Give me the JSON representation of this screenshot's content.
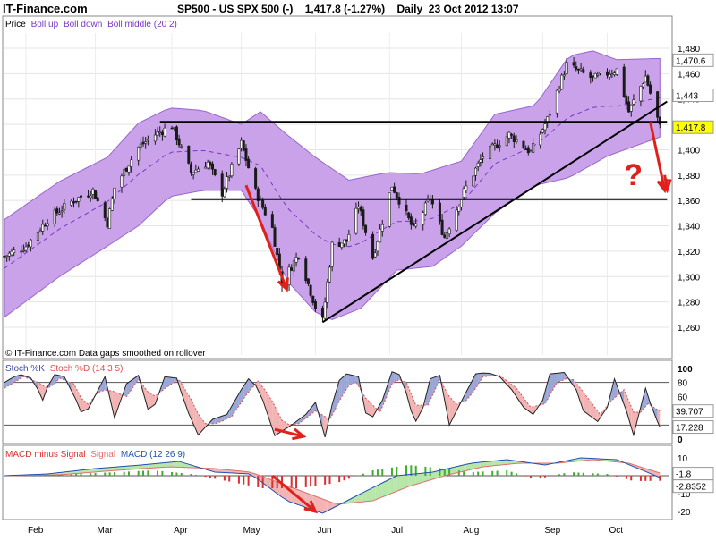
{
  "header": {
    "brand": "IT-Finance.com",
    "title": "SP500 - US SPX 500 (-)    1,417.8 (-1.27%)    Daily  23 Oct 2012 13:07"
  },
  "colors": {
    "band_fill": "#c9a2ea",
    "band_edge": "#9966cc",
    "middle_line": "#7a36c0",
    "candle": "#1a1a1a",
    "annotation_red": "#e0201a",
    "stoch_k": "#3b4aa8",
    "stoch_d": "#e05050",
    "macd_pos": "#3fae2a",
    "macd_neg": "#d93030",
    "macd_line": "#2050b0",
    "signal_line": "#e07070",
    "price_highlight": "#ffff00"
  },
  "chart_data": [
    {
      "type": "candlestick",
      "panel": "price",
      "title": "Price Boll up Boll down Boll middle (20 2)",
      "legend": {
        "prefix": "Price",
        "series": [
          {
            "name": "Boll up",
            "color": "#7a36c0"
          },
          {
            "name": "Boll down",
            "color": "#7a36c0"
          },
          {
            "name": "Boll middle (20 2)",
            "color": "#7a36c0"
          }
        ]
      },
      "footnote": "© IT-Finance.com Data gaps smoothed on rollover",
      "x_months": [
        "Feb",
        "Mar",
        "Apr",
        "May",
        "Jun",
        "Jul",
        "Aug",
        "Sep",
        "Oct"
      ],
      "ylim": [
        1248,
        1492
      ],
      "y_ticks": [
        1260,
        1280,
        1300,
        1320,
        1340,
        1360,
        1380,
        1400,
        1420,
        1440,
        1460,
        1480
      ],
      "y_tick_labels": [
        "1,260",
        "1,280",
        "1,300",
        "1,320",
        "1,340",
        "1,360",
        "1,380",
        "1,400",
        "1,420",
        "1,440",
        "1,460",
        "1,480"
      ],
      "close_key": [
        [
          "2012-01-23",
          1316
        ],
        [
          "2012-02-01",
          1324
        ],
        [
          "2012-02-10",
          1345
        ],
        [
          "2012-02-20",
          1359
        ],
        [
          "2012-02-29",
          1368
        ],
        [
          "2012-03-06",
          1342
        ],
        [
          "2012-03-09",
          1370
        ],
        [
          "2012-03-19",
          1402
        ],
        [
          "2012-03-26",
          1412
        ],
        [
          "2012-04-02",
          1419
        ],
        [
          "2012-04-10",
          1382
        ],
        [
          "2012-04-17",
          1390
        ],
        [
          "2012-04-23",
          1366
        ],
        [
          "2012-05-01",
          1405
        ],
        [
          "2012-05-07",
          1367
        ],
        [
          "2012-05-14",
          1338
        ],
        [
          "2012-05-18",
          1295
        ],
        [
          "2012-05-25",
          1318
        ],
        [
          "2012-06-01",
          1276
        ],
        [
          "2012-06-04",
          1265
        ],
        [
          "2012-06-08",
          1325
        ],
        [
          "2012-06-14",
          1328
        ],
        [
          "2012-06-19",
          1356
        ],
        [
          "2012-06-25",
          1315
        ],
        [
          "2012-07-03",
          1372
        ],
        [
          "2012-07-12",
          1337
        ],
        [
          "2012-07-19",
          1362
        ],
        [
          "2012-07-25",
          1331
        ],
        [
          "2012-08-02",
          1367
        ],
        [
          "2012-08-10",
          1395
        ],
        [
          "2012-08-21",
          1412
        ],
        [
          "2012-08-30",
          1398
        ],
        [
          "2012-09-06",
          1424
        ],
        [
          "2012-09-14",
          1467
        ],
        [
          "2012-09-25",
          1456
        ],
        [
          "2012-10-05",
          1463
        ],
        [
          "2012-10-10",
          1430
        ],
        [
          "2012-10-17",
          1458
        ],
        [
          "2012-10-23",
          1417.8
        ]
      ],
      "upper_band_key": [
        [
          "2012-01-23",
          1345
        ],
        [
          "2012-02-15",
          1375
        ],
        [
          "2012-03-06",
          1394
        ],
        [
          "2012-03-19",
          1421
        ],
        [
          "2012-04-01",
          1433
        ],
        [
          "2012-04-15",
          1431
        ],
        [
          "2012-05-01",
          1420
        ],
        [
          "2012-05-09",
          1430
        ],
        [
          "2012-05-20",
          1412
        ],
        [
          "2012-06-01",
          1394
        ],
        [
          "2012-06-15",
          1376
        ],
        [
          "2012-07-01",
          1382
        ],
        [
          "2012-07-15",
          1381
        ],
        [
          "2012-08-01",
          1391
        ],
        [
          "2012-08-15",
          1428
        ],
        [
          "2012-09-01",
          1435
        ],
        [
          "2012-09-15",
          1474
        ],
        [
          "2012-09-25",
          1478
        ],
        [
          "2012-10-05",
          1471
        ],
        [
          "2012-10-23",
          1472
        ]
      ],
      "lower_band_key": [
        [
          "2012-01-23",
          1268
        ],
        [
          "2012-02-15",
          1300
        ],
        [
          "2012-03-06",
          1324
        ],
        [
          "2012-03-19",
          1340
        ],
        [
          "2012-04-01",
          1363
        ],
        [
          "2012-04-15",
          1368
        ],
        [
          "2012-05-01",
          1368
        ],
        [
          "2012-05-09",
          1345
        ],
        [
          "2012-05-20",
          1297
        ],
        [
          "2012-06-01",
          1272
        ],
        [
          "2012-06-08",
          1266
        ],
        [
          "2012-06-20",
          1275
        ],
        [
          "2012-07-05",
          1305
        ],
        [
          "2012-07-20",
          1308
        ],
        [
          "2012-08-01",
          1324
        ],
        [
          "2012-08-15",
          1350
        ],
        [
          "2012-09-01",
          1372
        ],
        [
          "2012-09-15",
          1378
        ],
        [
          "2012-10-01",
          1395
        ],
        [
          "2012-10-23",
          1410
        ]
      ],
      "last_values": [
        {
          "label": "1,470.6",
          "value": 1470.6,
          "highlight": false
        },
        {
          "label": "1,443",
          "value": 1443,
          "highlight": false
        },
        {
          "label": "1,417.8",
          "value": 1417.8,
          "highlight": true
        }
      ],
      "annotations": {
        "horizontal_lines": [
          {
            "y": 1422,
            "from": "2012-03-28",
            "to": "2012-10-26"
          },
          {
            "y": 1361,
            "from": "2012-04-10",
            "to": "2012-10-26"
          }
        ],
        "trend_line": {
          "from": [
            "2012-06-04",
            1264
          ],
          "to": [
            "2012-10-26",
            1438
          ]
        },
        "arrows": [
          {
            "from": [
              "2012-05-03",
              1372
            ],
            "to": [
              "2012-05-20",
              1290
            ]
          },
          {
            "from": [
              "2012-10-19",
              1422
            ],
            "to": [
              "2012-10-25",
              1368
            ]
          },
          {
            "from": [
              "2012-10-25",
              1380
            ],
            "to": [
              "2012-10-26",
              1368
            ]
          }
        ],
        "question_mark": {
          "text": "?",
          "at": [
            "2012-10-08",
            1372
          ]
        }
      }
    },
    {
      "type": "line",
      "panel": "stochastic",
      "title": "Stoch %K Stoch %D (14 3 5)",
      "legend": {
        "series": [
          {
            "name": "Stoch %K",
            "color": "#3b4aa8"
          },
          {
            "name": "Stoch %D (14 3 5)",
            "color": "#e05050"
          }
        ]
      },
      "ylim": [
        -6,
        106
      ],
      "y_ticks": [
        0,
        20,
        40,
        60,
        80,
        100
      ],
      "guide_lines": [
        20,
        80
      ],
      "k_key": [
        [
          "2012-01-23",
          80
        ],
        [
          "2012-01-29",
          92
        ],
        [
          "2012-02-04",
          85
        ],
        [
          "2012-02-08",
          55
        ],
        [
          "2012-02-12",
          92
        ],
        [
          "2012-02-17",
          88
        ],
        [
          "2012-02-22",
          55
        ],
        [
          "2012-02-25",
          30
        ],
        [
          "2012-03-01",
          62
        ],
        [
          "2012-03-05",
          88
        ],
        [
          "2012-03-09",
          30
        ],
        [
          "2012-03-14",
          78
        ],
        [
          "2012-03-19",
          90
        ],
        [
          "2012-03-24",
          30
        ],
        [
          "2012-03-30",
          88
        ],
        [
          "2012-04-04",
          86
        ],
        [
          "2012-04-08",
          44
        ],
        [
          "2012-04-13",
          6
        ],
        [
          "2012-04-19",
          28
        ],
        [
          "2012-04-25",
          35
        ],
        [
          "2012-05-01",
          70
        ],
        [
          "2012-05-05",
          90
        ],
        [
          "2012-05-10",
          55
        ],
        [
          "2012-05-15",
          5
        ],
        [
          "2012-05-22",
          20
        ],
        [
          "2012-05-28",
          35
        ],
        [
          "2012-06-01",
          52
        ],
        [
          "2012-06-05",
          3
        ],
        [
          "2012-06-10",
          80
        ],
        [
          "2012-06-14",
          92
        ],
        [
          "2012-06-19",
          88
        ],
        [
          "2012-06-23",
          20
        ],
        [
          "2012-06-29",
          55
        ],
        [
          "2012-07-03",
          95
        ],
        [
          "2012-07-07",
          90
        ],
        [
          "2012-07-11",
          40
        ],
        [
          "2012-07-14",
          18
        ],
        [
          "2012-07-19",
          85
        ],
        [
          "2012-07-23",
          90
        ],
        [
          "2012-07-27",
          20
        ],
        [
          "2012-08-02",
          60
        ],
        [
          "2012-08-07",
          92
        ],
        [
          "2012-08-12",
          94
        ],
        [
          "2012-08-17",
          88
        ],
        [
          "2012-08-22",
          70
        ],
        [
          "2012-08-27",
          45
        ],
        [
          "2012-08-31",
          35
        ],
        [
          "2012-09-04",
          55
        ],
        [
          "2012-09-07",
          92
        ],
        [
          "2012-09-13",
          94
        ],
        [
          "2012-09-18",
          70
        ],
        [
          "2012-09-21",
          40
        ],
        [
          "2012-09-27",
          25
        ],
        [
          "2012-10-01",
          45
        ],
        [
          "2012-10-04",
          85
        ],
        [
          "2012-10-09",
          40
        ],
        [
          "2012-10-12",
          6
        ],
        [
          "2012-10-17",
          72
        ],
        [
          "2012-10-20",
          40
        ],
        [
          "2012-10-23",
          17.228
        ]
      ],
      "d_key": [
        [
          "2012-01-23",
          72
        ],
        [
          "2012-01-31",
          88
        ],
        [
          "2012-02-06",
          80
        ],
        [
          "2012-02-11",
          70
        ],
        [
          "2012-02-15",
          86
        ],
        [
          "2012-02-21",
          78
        ],
        [
          "2012-02-26",
          45
        ],
        [
          "2012-03-03",
          70
        ],
        [
          "2012-03-08",
          68
        ],
        [
          "2012-03-14",
          60
        ],
        [
          "2012-03-19",
          84
        ],
        [
          "2012-03-25",
          58
        ],
        [
          "2012-03-31",
          74
        ],
        [
          "2012-04-05",
          84
        ],
        [
          "2012-04-10",
          56
        ],
        [
          "2012-04-15",
          22
        ],
        [
          "2012-04-21",
          22
        ],
        [
          "2012-04-27",
          32
        ],
        [
          "2012-05-03",
          62
        ],
        [
          "2012-05-08",
          82
        ],
        [
          "2012-05-13",
          60
        ],
        [
          "2012-05-19",
          20
        ],
        [
          "2012-05-25",
          22
        ],
        [
          "2012-06-01",
          40
        ],
        [
          "2012-06-07",
          28
        ],
        [
          "2012-06-12",
          60
        ],
        [
          "2012-06-17",
          86
        ],
        [
          "2012-06-22",
          58
        ],
        [
          "2012-06-28",
          38
        ],
        [
          "2012-07-03",
          78
        ],
        [
          "2012-07-08",
          88
        ],
        [
          "2012-07-13",
          48
        ],
        [
          "2012-07-18",
          48
        ],
        [
          "2012-07-23",
          84
        ],
        [
          "2012-07-29",
          48
        ],
        [
          "2012-08-04",
          56
        ],
        [
          "2012-08-10",
          88
        ],
        [
          "2012-08-17",
          90
        ],
        [
          "2012-08-24",
          72
        ],
        [
          "2012-08-30",
          45
        ],
        [
          "2012-09-05",
          50
        ],
        [
          "2012-09-10",
          80
        ],
        [
          "2012-09-16",
          88
        ],
        [
          "2012-09-22",
          62
        ],
        [
          "2012-09-28",
          35
        ],
        [
          "2012-10-03",
          55
        ],
        [
          "2012-10-08",
          70
        ],
        [
          "2012-10-13",
          30
        ],
        [
          "2012-10-18",
          50
        ],
        [
          "2012-10-23",
          39.707
        ]
      ],
      "last_values": [
        {
          "label": "39.707",
          "value": 39.707
        },
        {
          "label": "17.228",
          "value": 17.228
        }
      ],
      "annotations": {
        "arrows": [
          {
            "from": [
              "2012-05-15",
              14
            ],
            "to": [
              "2012-05-27",
              4
            ]
          }
        ]
      }
    },
    {
      "type": "bar",
      "panel": "macd",
      "title": "MACD minus Signal Signal MACD (12 26 9)",
      "legend": {
        "series": [
          {
            "name": "MACD minus Signal",
            "color": "#d93030"
          },
          {
            "name": "Signal",
            "color": "#e07070"
          },
          {
            "name": "MACD (12 26 9)",
            "color": "#2050b0"
          }
        ]
      },
      "ylim": [
        -24,
        16
      ],
      "y_ticks": [
        -20,
        -10,
        0,
        10
      ],
      "macd_key": [
        [
          "2012-01-23",
          0
        ],
        [
          "2012-02-10",
          1
        ],
        [
          "2012-03-01",
          4
        ],
        [
          "2012-03-20",
          6
        ],
        [
          "2012-04-05",
          8
        ],
        [
          "2012-04-20",
          2
        ],
        [
          "2012-05-05",
          1
        ],
        [
          "2012-05-20",
          -14
        ],
        [
          "2012-06-04",
          -21
        ],
        [
          "2012-06-20",
          -10
        ],
        [
          "2012-07-05",
          0
        ],
        [
          "2012-07-20",
          2
        ],
        [
          "2012-08-05",
          7
        ],
        [
          "2012-08-20",
          9
        ],
        [
          "2012-09-05",
          6
        ],
        [
          "2012-09-20",
          10
        ],
        [
          "2012-10-05",
          9
        ],
        [
          "2012-10-23",
          -1
        ]
      ],
      "signal_key": [
        [
          "2012-01-23",
          0
        ],
        [
          "2012-02-15",
          0.5
        ],
        [
          "2012-03-10",
          3
        ],
        [
          "2012-04-01",
          5
        ],
        [
          "2012-04-20",
          4
        ],
        [
          "2012-05-05",
          2
        ],
        [
          "2012-05-25",
          -8
        ],
        [
          "2012-06-10",
          -16
        ],
        [
          "2012-06-25",
          -14
        ],
        [
          "2012-07-10",
          -6
        ],
        [
          "2012-07-25",
          0
        ],
        [
          "2012-08-10",
          5
        ],
        [
          "2012-08-25",
          7
        ],
        [
          "2012-09-10",
          7
        ],
        [
          "2012-09-25",
          9
        ],
        [
          "2012-10-10",
          7
        ],
        [
          "2012-10-23",
          1.5
        ]
      ],
      "histogram_key": [
        [
          "2012-01-23",
          0
        ],
        [
          "2012-02-20",
          1
        ],
        [
          "2012-03-10",
          2
        ],
        [
          "2012-03-25",
          3
        ],
        [
          "2012-04-10",
          1
        ],
        [
          "2012-04-25",
          -3
        ],
        [
          "2012-05-10",
          -7
        ],
        [
          "2012-05-25",
          -7
        ],
        [
          "2012-06-10",
          -4
        ],
        [
          "2012-06-25",
          3
        ],
        [
          "2012-07-10",
          6
        ],
        [
          "2012-07-25",
          4
        ],
        [
          "2012-08-05",
          2
        ],
        [
          "2012-08-20",
          3
        ],
        [
          "2012-09-01",
          -2
        ],
        [
          "2012-09-15",
          2
        ],
        [
          "2012-10-01",
          1
        ],
        [
          "2012-10-12",
          -3
        ],
        [
          "2012-10-23",
          -2.8352
        ]
      ],
      "last_values": [
        {
          "label": "-1.8",
          "value": -1.8
        },
        {
          "label": "-2.8352",
          "value": -2.8352
        }
      ],
      "annotations": {
        "arrows": [
          {
            "from": [
              "2012-05-14",
              0
            ],
            "to": [
              "2012-06-01",
              -20
            ]
          }
        ]
      }
    }
  ]
}
